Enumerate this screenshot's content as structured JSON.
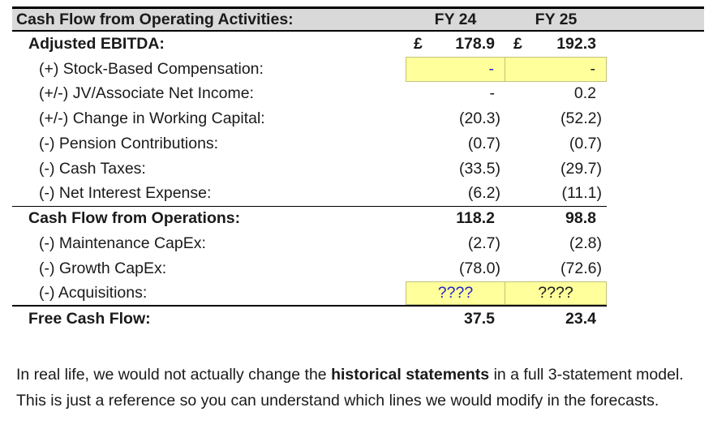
{
  "table": {
    "header": {
      "title": "Cash Flow from Operating Activities:",
      "col_fy24": "FY 24",
      "col_fy25": "FY 25"
    },
    "currency_symbol": "£",
    "rows": [
      {
        "label": "Adjusted EBITDA:",
        "level": "summary",
        "border": "none",
        "fy24": {
          "text": "178.9",
          "currency": true
        },
        "fy25": {
          "text": "192.3",
          "currency": true
        }
      },
      {
        "label": "(+) Stock-Based Compensation:",
        "level": "item",
        "border": "none",
        "fy24": {
          "text": "-",
          "highlight": true,
          "blue": true
        },
        "fy25": {
          "text": "-",
          "highlight": true
        }
      },
      {
        "label": "(+/-) JV/Associate Net Income:",
        "level": "item",
        "border": "none",
        "fy24": {
          "text": "-"
        },
        "fy25": {
          "text": "0.2"
        }
      },
      {
        "label": "(+/-) Change in Working Capital:",
        "level": "item",
        "border": "none",
        "fy24": {
          "text": "(20.3)"
        },
        "fy25": {
          "text": "(52.2)"
        }
      },
      {
        "label": "(-) Pension Contributions:",
        "level": "item",
        "border": "none",
        "fy24": {
          "text": "(0.7)"
        },
        "fy25": {
          "text": "(0.7)"
        }
      },
      {
        "label": "(-) Cash Taxes:",
        "level": "item",
        "border": "none",
        "fy24": {
          "text": "(33.5)"
        },
        "fy25": {
          "text": "(29.7)"
        }
      },
      {
        "label": "(-) Net Interest Expense:",
        "level": "item",
        "border": "thin",
        "fy24": {
          "text": "(6.2)"
        },
        "fy25": {
          "text": "(11.1)"
        }
      },
      {
        "label": "Cash Flow from Operations:",
        "level": "summary",
        "border": "none",
        "fy24": {
          "text": "118.2"
        },
        "fy25": {
          "text": "98.8"
        }
      },
      {
        "label": "(-) Maintenance CapEx:",
        "level": "item",
        "border": "none",
        "fy24": {
          "text": "(2.7)"
        },
        "fy25": {
          "text": "(2.8)"
        }
      },
      {
        "label": "(-) Growth CapEx:",
        "level": "item",
        "border": "none",
        "fy24": {
          "text": "(78.0)"
        },
        "fy25": {
          "text": "(72.6)"
        }
      },
      {
        "label": "(-) Acquisitions:",
        "level": "item",
        "border": "thick",
        "fy24": {
          "text": "????",
          "highlight": true,
          "blue": true,
          "align": "center"
        },
        "fy25": {
          "text": "????",
          "highlight": true,
          "align": "center"
        }
      },
      {
        "label": "Free Cash Flow:",
        "level": "summary",
        "border": "none",
        "fy24": {
          "text": "37.5"
        },
        "fy25": {
          "text": "23.4"
        }
      }
    ]
  },
  "footnote": {
    "pre": "In real life, we would not actually change the ",
    "bold": "historical statements",
    "post": " in a full 3-statement model. This is just a reference so you can understand which lines we would modify in the forecasts."
  },
  "colors": {
    "header_bg": "#D9D9D9",
    "highlight_bg": "#FFFF9C",
    "highlight_border": "#C2C27E",
    "input_blue": "#2323CB",
    "text": "#1A1A1A",
    "line": "#000000"
  }
}
